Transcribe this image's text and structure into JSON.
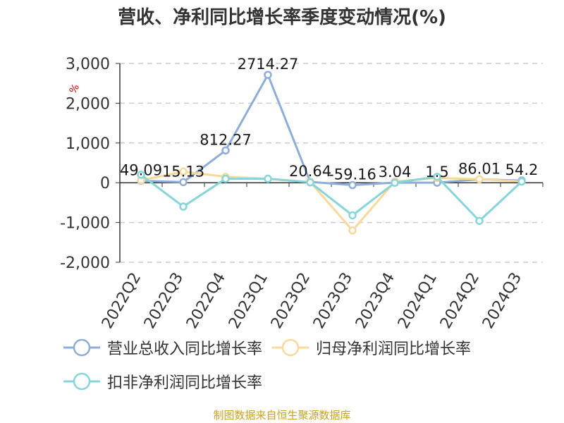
{
  "chart_data": {
    "type": "line",
    "title": "营收、净利同比增长率季度变动情况(%)",
    "ylabel": "%",
    "categories": [
      "2022Q2",
      "2022Q3",
      "2022Q4",
      "2023Q1",
      "2023Q2",
      "2023Q3",
      "2023Q4",
      "2024Q1",
      "2024Q2",
      "2024Q3"
    ],
    "ylim": [
      -2000,
      3000
    ],
    "yticks": [
      -2000,
      -1000,
      0,
      1000,
      2000,
      3000
    ],
    "ytick_labels": [
      "-2,000",
      "-1,000",
      "0",
      "1,000",
      "2,000",
      "3,000"
    ],
    "grid": true,
    "legend_position": "bottom",
    "series": [
      {
        "name": "营业总收入同比增长率",
        "color": "#8fadd9",
        "values": [
          49.09,
          15.13,
          812.27,
          2714.27,
          20.64,
          -59.16,
          3.04,
          1.5,
          86.01,
          54.2
        ],
        "labels": [
          "49.09",
          "15.13",
          "812.27",
          "2714.27",
          "20.64",
          "-59.16",
          "3.04",
          "1.5",
          "86.01",
          "54.2"
        ]
      },
      {
        "name": "归母净利润同比增长率",
        "color": "#f9d99a",
        "values": [
          60,
          280,
          150,
          100,
          20,
          -1200,
          30,
          120,
          90,
          30
        ]
      },
      {
        "name": "扣非净利润同比增长率",
        "color": "#86d5d8",
        "values": [
          200,
          -600,
          100,
          100,
          10,
          -820,
          0,
          150,
          -960,
          30
        ]
      }
    ]
  },
  "footer": {
    "source": "制图数据来自恒生聚源数据库"
  }
}
